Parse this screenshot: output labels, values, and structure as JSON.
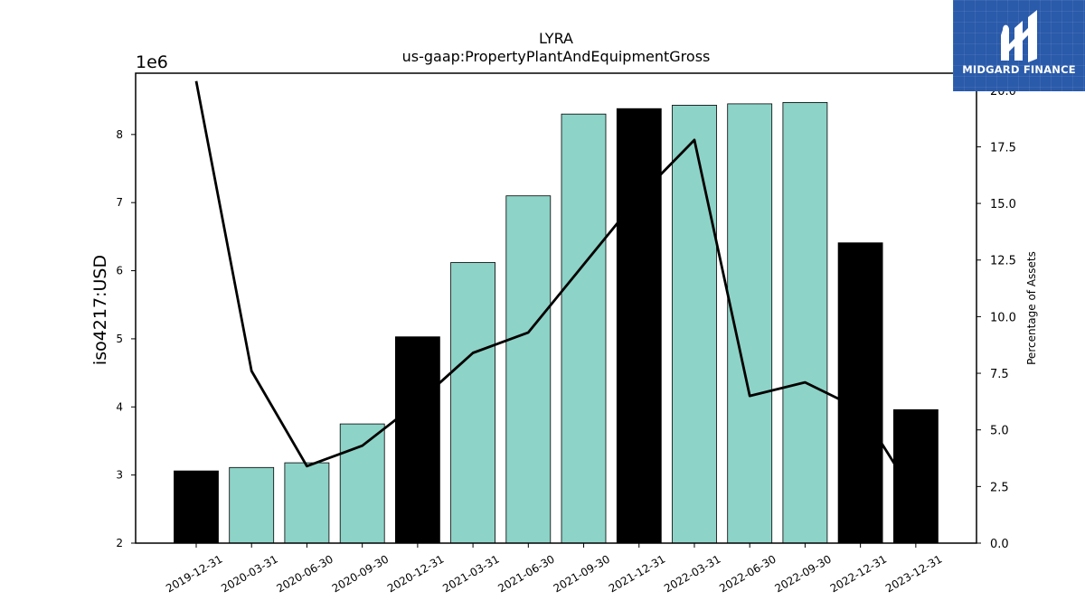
{
  "chart_data": {
    "type": "bar",
    "title": "LYRA",
    "subtitle": "us-gaap:PropertyPlantAndEquipmentGross",
    "ylabel": "iso4217:USD",
    "y_offset_label": "1e6",
    "y2label": "Percentage of Assets",
    "categories": [
      "2019-12-31",
      "2020-03-31",
      "2020-06-30",
      "2020-09-30",
      "2020-12-31",
      "2021-03-31",
      "2021-06-30",
      "2021-09-30",
      "2021-12-31",
      "2022-03-31",
      "2022-06-30",
      "2022-09-30",
      "2022-12-31",
      "2023-12-31"
    ],
    "series": [
      {
        "type": "bar",
        "values": [
          3.06,
          3.11,
          3.18,
          3.75,
          5.03,
          6.12,
          7.1,
          8.3,
          8.38,
          8.43,
          8.45,
          8.47,
          6.41,
          3.96
        ],
        "bar_colors": [
          "#000000",
          "#8dd3c7",
          "#8dd3c7",
          "#8dd3c7",
          "#000000",
          "#8dd3c7",
          "#8dd3c7",
          "#8dd3c7",
          "#000000",
          "#8dd3c7",
          "#8dd3c7",
          "#8dd3c7",
          "#000000",
          "#000000"
        ],
        "axis": "left"
      },
      {
        "type": "line",
        "values": [
          20.4,
          7.6,
          3.4,
          4.3,
          6.2,
          8.4,
          9.3,
          12.3,
          15.3,
          17.8,
          6.5,
          7.1,
          5.9,
          2.0
        ],
        "color": "#000000",
        "axis": "right"
      }
    ],
    "ylim": [
      2,
      8.9
    ],
    "y2lim": [
      0,
      20.75
    ],
    "yticks": [
      2,
      3,
      4,
      5,
      6,
      7,
      8
    ],
    "y2ticks": [
      0,
      2.5,
      5,
      7.5,
      10,
      12.5,
      15,
      17.5,
      20
    ],
    "y2tick_labels": [
      "0.0",
      "2.5",
      "5.0",
      "7.5",
      "10.0",
      "12.5",
      "15.0",
      "17.5",
      "20.0"
    ],
    "grid": false,
    "legend": "none"
  },
  "logo": {
    "text": "MIDGARD FINANCE",
    "bg_color": "#2a5aaa"
  }
}
